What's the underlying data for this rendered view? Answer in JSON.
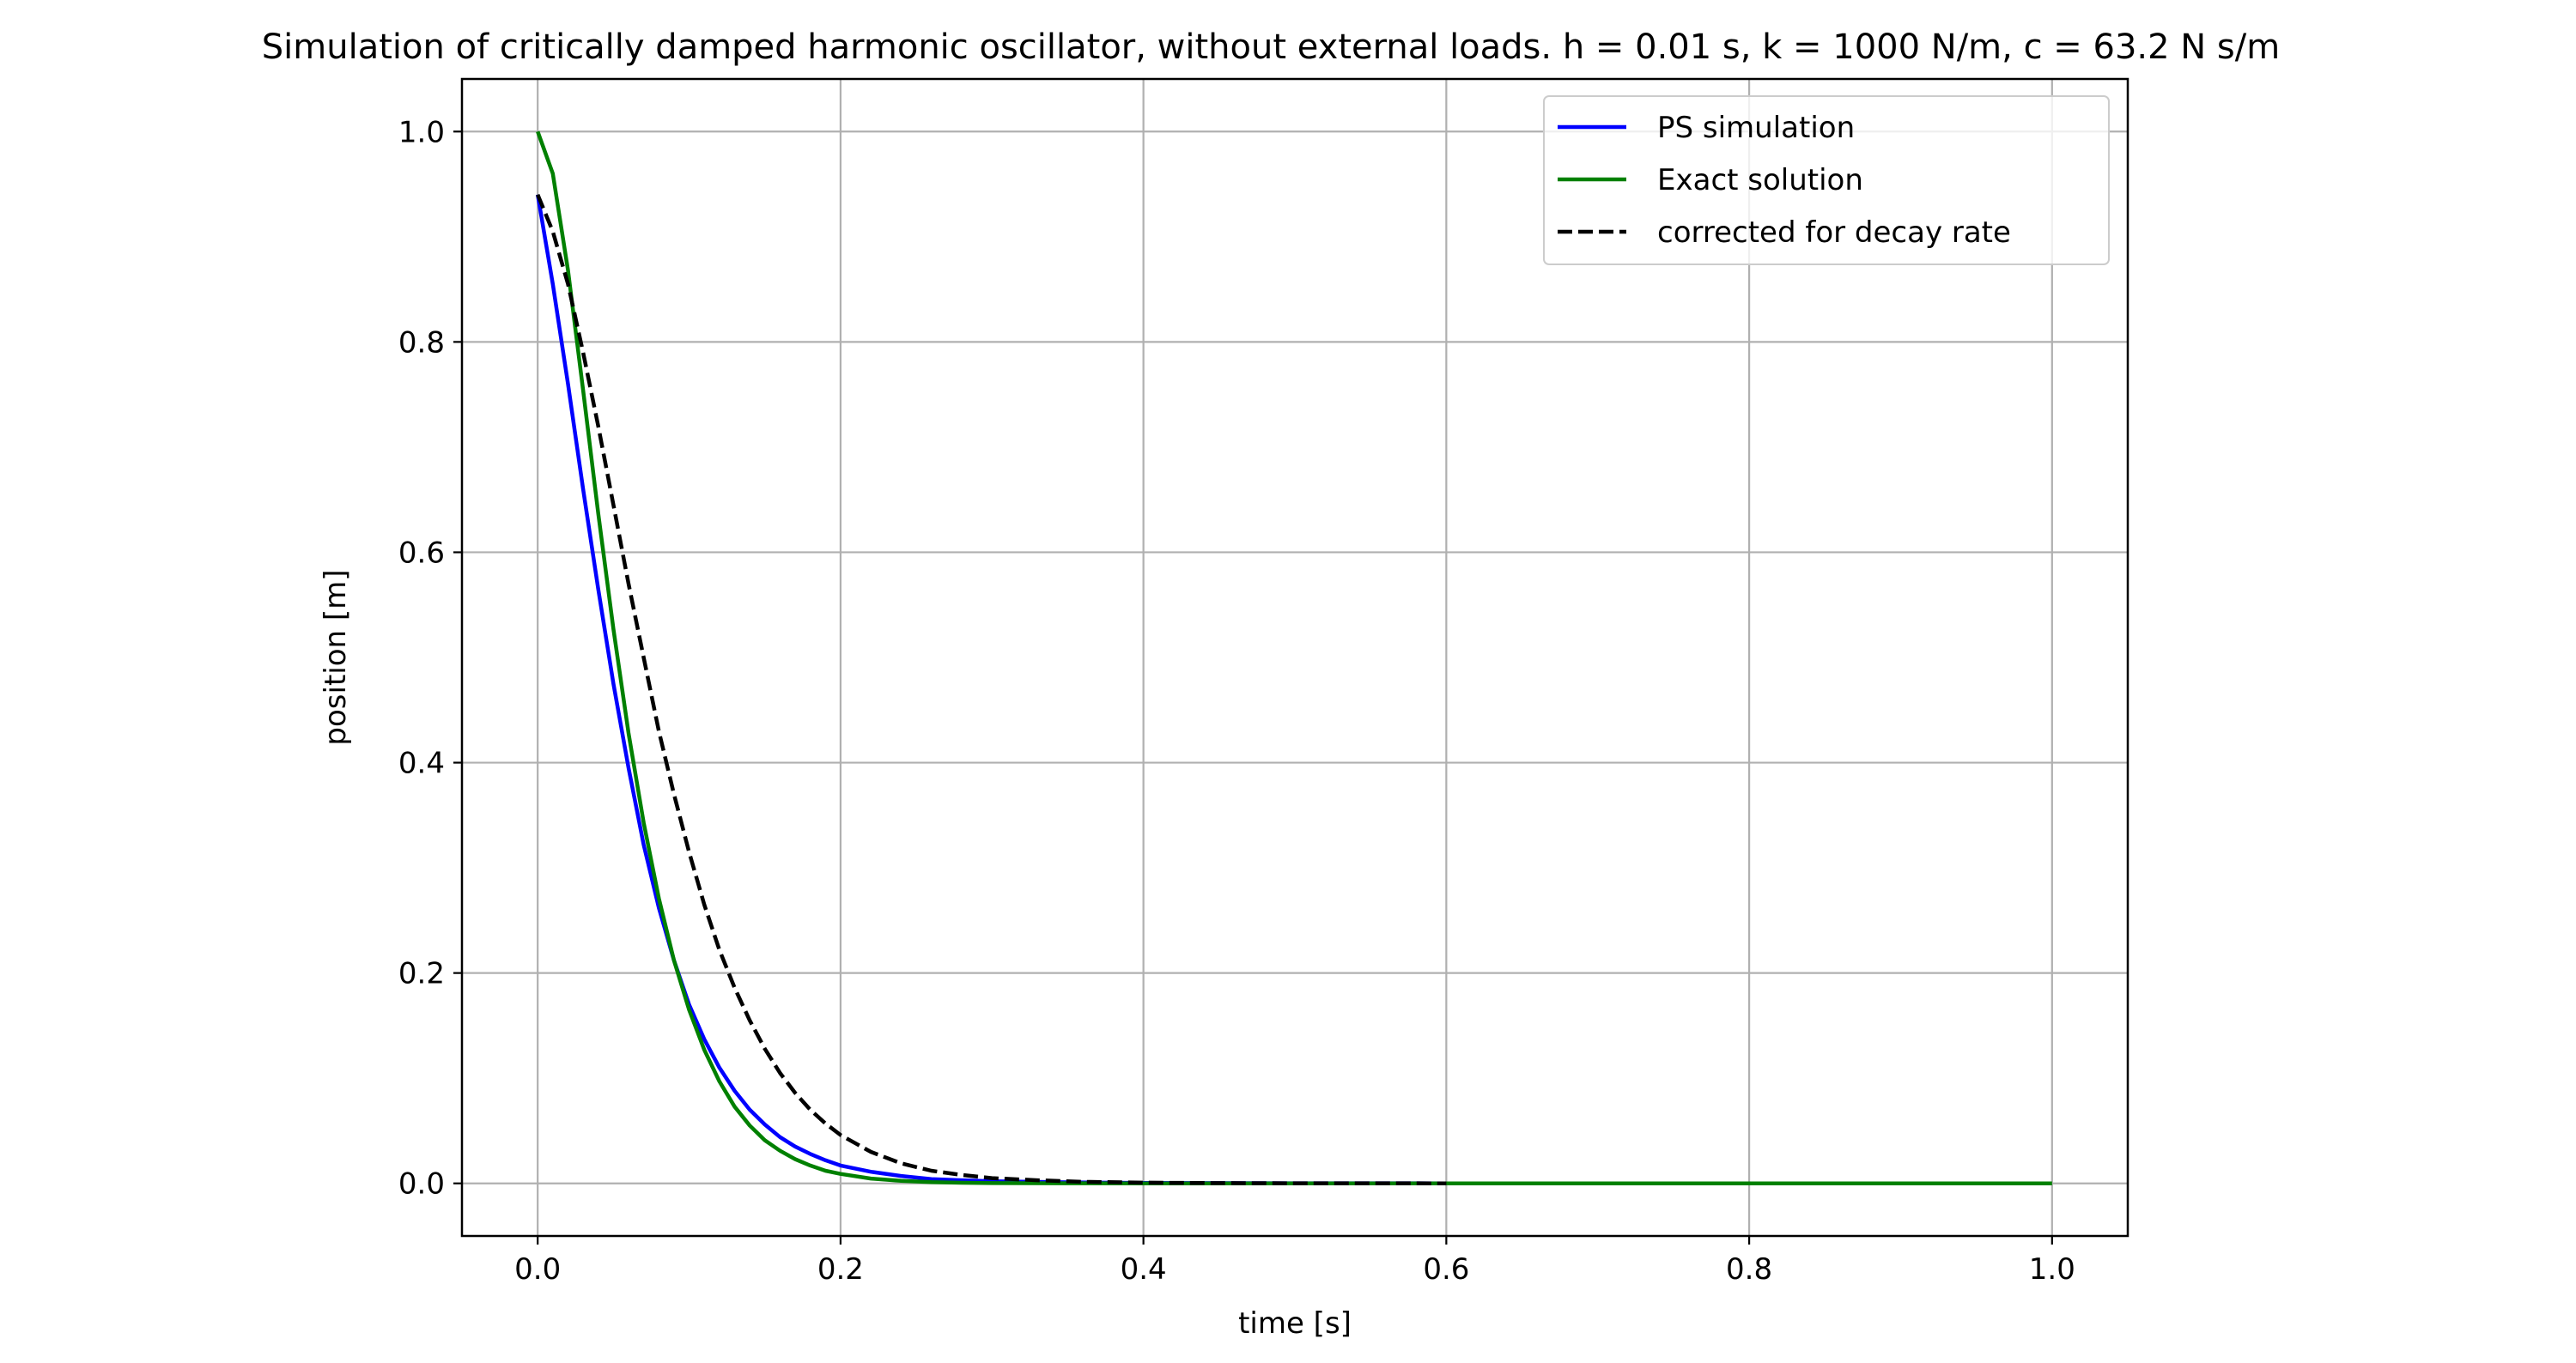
{
  "chart_data": {
    "type": "line",
    "title": "Simulation of critically damped harmonic oscillator, without external loads. h = 0.01 s, k = 1000 N/m, c = 63.2 N s/m",
    "xlabel": "time [s]",
    "ylabel": "position [m]",
    "xlim": [
      -0.05,
      1.05
    ],
    "ylim": [
      -0.05,
      1.05
    ],
    "xticks": [
      0.0,
      0.2,
      0.4,
      0.6,
      0.8,
      1.0
    ],
    "xtick_labels": [
      "0.0",
      "0.2",
      "0.4",
      "0.6",
      "0.8",
      "1.0"
    ],
    "yticks": [
      0.0,
      0.2,
      0.4,
      0.6,
      0.8,
      1.0
    ],
    "ytick_labels": [
      "0.0",
      "0.2",
      "0.4",
      "0.6",
      "0.8",
      "1.0"
    ],
    "grid": true,
    "legend_position": "top-right",
    "series": [
      {
        "name": "PS simulation",
        "color": "#0000ff",
        "style": "solid",
        "x": [
          0.0,
          0.01,
          0.02,
          0.03,
          0.04,
          0.05,
          0.06,
          0.07,
          0.08,
          0.09,
          0.1,
          0.11,
          0.12,
          0.13,
          0.14,
          0.15,
          0.16,
          0.17,
          0.18,
          0.19,
          0.2,
          0.22,
          0.24,
          0.26,
          0.28,
          0.3,
          0.35,
          0.4,
          0.5,
          0.6
        ],
        "y": [
          0.94,
          0.855,
          0.76,
          0.66,
          0.565,
          0.475,
          0.395,
          0.322,
          0.262,
          0.212,
          0.17,
          0.137,
          0.11,
          0.088,
          0.07,
          0.056,
          0.044,
          0.035,
          0.028,
          0.022,
          0.017,
          0.011,
          0.007,
          0.004,
          0.003,
          0.002,
          0.001,
          0.0004,
          0.0001,
          0.0
        ]
      },
      {
        "name": "Exact solution",
        "color": "#008000",
        "style": "solid",
        "x": [
          0.0,
          0.01,
          0.02,
          0.03,
          0.04,
          0.05,
          0.06,
          0.07,
          0.08,
          0.09,
          0.1,
          0.11,
          0.12,
          0.13,
          0.14,
          0.15,
          0.16,
          0.17,
          0.18,
          0.19,
          0.2,
          0.22,
          0.24,
          0.26,
          0.28,
          0.3,
          0.35,
          0.4,
          0.5,
          0.6,
          0.7,
          0.8,
          0.9,
          1.0
        ],
        "y": [
          1.0,
          0.96,
          0.868,
          0.754,
          0.637,
          0.527,
          0.428,
          0.343,
          0.271,
          0.212,
          0.165,
          0.127,
          0.097,
          0.073,
          0.055,
          0.041,
          0.031,
          0.023,
          0.017,
          0.012,
          0.009,
          0.0046,
          0.0024,
          0.0012,
          0.0006,
          0.0003,
          0.0001,
          0.0,
          0.0,
          0.0,
          0.0,
          0.0,
          0.0,
          0.0
        ]
      },
      {
        "name": "corrected for decay rate",
        "color": "#000000",
        "style": "dashed",
        "x": [
          0.0,
          0.01,
          0.02,
          0.03,
          0.04,
          0.05,
          0.06,
          0.07,
          0.08,
          0.09,
          0.1,
          0.11,
          0.12,
          0.13,
          0.14,
          0.15,
          0.16,
          0.17,
          0.18,
          0.19,
          0.2,
          0.22,
          0.24,
          0.26,
          0.28,
          0.3,
          0.33,
          0.36,
          0.4,
          0.45,
          0.5,
          0.6
        ],
        "y": [
          0.94,
          0.905,
          0.855,
          0.79,
          0.72,
          0.645,
          0.57,
          0.5,
          0.43,
          0.37,
          0.315,
          0.265,
          0.222,
          0.186,
          0.155,
          0.128,
          0.105,
          0.086,
          0.07,
          0.057,
          0.046,
          0.03,
          0.019,
          0.012,
          0.008,
          0.005,
          0.003,
          0.0015,
          0.0007,
          0.0003,
          0.0001,
          0.0
        ]
      }
    ]
  }
}
